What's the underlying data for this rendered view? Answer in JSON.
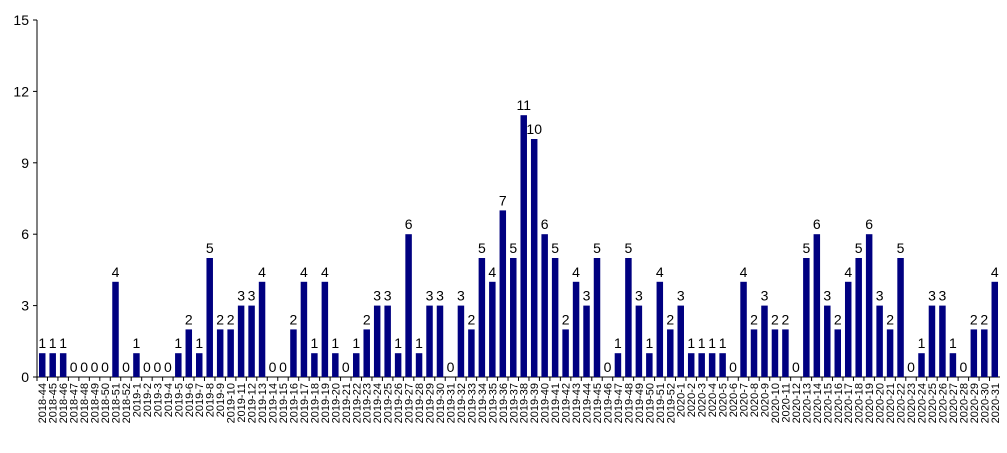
{
  "chart_data": {
    "type": "bar",
    "title": "",
    "xlabel": "",
    "ylabel": "",
    "ylim": [
      0,
      15
    ],
    "yticks": [
      "0",
      "3",
      "6",
      "9",
      "12",
      "15"
    ],
    "grid": false,
    "legend": "none",
    "bar_color": "#000080",
    "categories": [
      "2018-44",
      "2018-45",
      "2018-46",
      "2018-47",
      "2018-48",
      "2018-49",
      "2018-50",
      "2018-51",
      "2018-52",
      "2019-1",
      "2019-2",
      "2019-3",
      "2019-4",
      "2019-5",
      "2019-6",
      "2019-7",
      "2019-8",
      "2019-9",
      "2019-10",
      "2019-11",
      "2019-12",
      "2019-13",
      "2019-14",
      "2019-15",
      "2019-16",
      "2019-17",
      "2019-18",
      "2019-19",
      "2019-20",
      "2019-21",
      "2019-22",
      "2019-23",
      "2019-24",
      "2019-25",
      "2019-26",
      "2019-27",
      "2019-28",
      "2019-29",
      "2019-30",
      "2019-31",
      "2019-32",
      "2019-33",
      "2019-34",
      "2019-35",
      "2019-36",
      "2019-37",
      "2019-38",
      "2019-39",
      "2019-40",
      "2019-41",
      "2019-42",
      "2019-43",
      "2019-44",
      "2019-45",
      "2019-46",
      "2019-47",
      "2019-48",
      "2019-49",
      "2019-50",
      "2019-51",
      "2019-52",
      "2020-1",
      "2020-2",
      "2020-3",
      "2020-4",
      "2020-5",
      "2020-6",
      "2020-7",
      "2020-8",
      "2020-9",
      "2020-10",
      "2020-11",
      "2020-12",
      "2020-13",
      "2020-14",
      "2020-15",
      "2020-16",
      "2020-17",
      "2020-18",
      "2020-19",
      "2020-20",
      "2020-21",
      "2020-22",
      "2020-23",
      "2020-24",
      "2020-25",
      "2020-26",
      "2020-27",
      "2020-28",
      "2020-29",
      "2020-30",
      "2020-31"
    ],
    "values": [
      1,
      1,
      1,
      0,
      0,
      0,
      0,
      4,
      0,
      1,
      0,
      0,
      0,
      1,
      2,
      1,
      5,
      2,
      2,
      3,
      3,
      4,
      0,
      0,
      2,
      4,
      1,
      4,
      1,
      0,
      1,
      2,
      3,
      3,
      1,
      6,
      1,
      3,
      3,
      0,
      3,
      2,
      5,
      4,
      7,
      5,
      11,
      10,
      6,
      5,
      2,
      4,
      3,
      5,
      0,
      1,
      5,
      3,
      1,
      4,
      2,
      3,
      1,
      1,
      1,
      1,
      0,
      4,
      2,
      3,
      2,
      2,
      0,
      5,
      6,
      3,
      2,
      4,
      5,
      6,
      3,
      2,
      5,
      0,
      1,
      3,
      3,
      1,
      0,
      2,
      2,
      4
    ],
    "x_label_format": "category label for each week",
    "data_labels": true
  }
}
